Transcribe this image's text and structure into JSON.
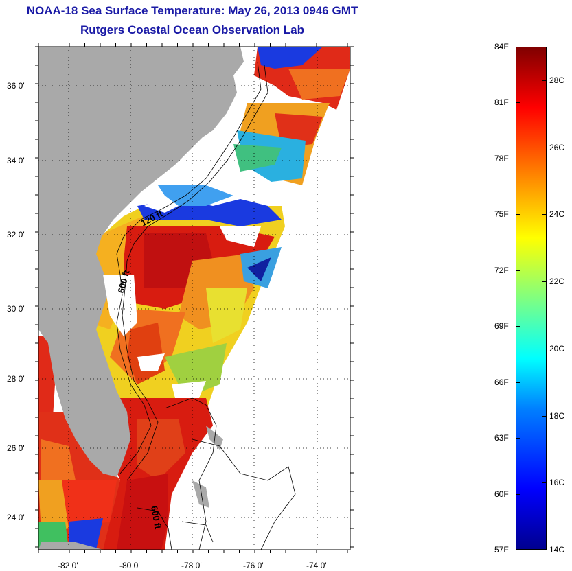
{
  "title": {
    "line1": "NOAA-18 Sea Surface Temperature:  May 26, 2013 0946 GMT",
    "line2": "Rutgers Coastal Ocean Observation Lab"
  },
  "map": {
    "lon_labels": [
      "-82 0'",
      "-80 0'",
      "-78 0'",
      "-76 0'",
      "-74 0'"
    ],
    "lat_labels": [
      "36 0'",
      "34 0'",
      "32 0'",
      "30 0'",
      "28 0'",
      "26 0'",
      "24 0'"
    ],
    "contour_labels": [
      "120 ft",
      "600 ft",
      "600 ft"
    ],
    "colors": {
      "land": "#a9a9a9",
      "cloud": "#ffffff",
      "warm": "#d81c10",
      "cold": "#1030d0"
    }
  },
  "colorbar": {
    "fahrenheit_labels": [
      "84F",
      "81F",
      "78F",
      "75F",
      "72F",
      "69F",
      "66F",
      "63F",
      "60F",
      "57F"
    ],
    "celsius_labels": [
      "28C",
      "26C",
      "24C",
      "22C",
      "20C",
      "18C",
      "16C",
      "14C"
    ],
    "range_f": [
      57,
      84
    ],
    "range_c": [
      14,
      29
    ],
    "colormap": "jet"
  }
}
